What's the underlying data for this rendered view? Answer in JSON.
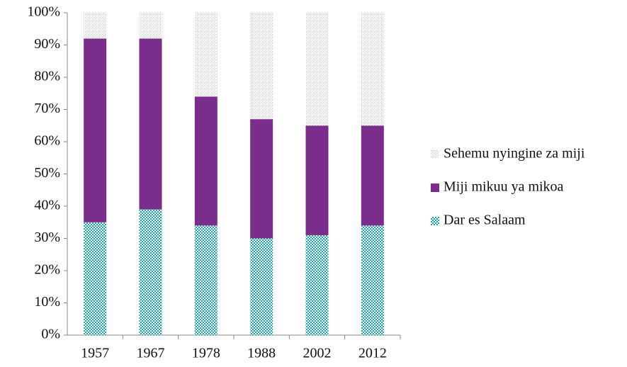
{
  "chart_data": {
    "type": "stacked_bar",
    "categories": [
      "1957",
      "1967",
      "1978",
      "1988",
      "2002",
      "2012"
    ],
    "series": [
      {
        "name": "Dar es Salaam",
        "color": "#1aa3a8",
        "pattern": "checker",
        "values": [
          35,
          39,
          34,
          30,
          31,
          34
        ]
      },
      {
        "name": "Miji mikuu ya mikoa",
        "color": "#7b2d8b",
        "pattern": "solid",
        "values": [
          57,
          53,
          40,
          37,
          34,
          31
        ]
      },
      {
        "name": "Sehemu nyingine za miji",
        "color": "#b8b8b8",
        "pattern": "dots",
        "values": [
          8,
          8,
          26,
          33,
          35,
          35
        ]
      }
    ],
    "ylim": [
      0,
      100
    ],
    "yticks": [
      {
        "value": 0,
        "label": "0%"
      },
      {
        "value": 10,
        "label": "10%"
      },
      {
        "value": 20,
        "label": "20%"
      },
      {
        "value": 30,
        "label": "30%"
      },
      {
        "value": 40,
        "label": "40%"
      },
      {
        "value": 50,
        "label": "50%"
      },
      {
        "value": 60,
        "label": "60%"
      },
      {
        "value": 70,
        "label": "70%"
      },
      {
        "value": 80,
        "label": "80%"
      },
      {
        "value": 90,
        "label": "90%"
      },
      {
        "value": 100,
        "label": "100%"
      }
    ],
    "grid": false,
    "legend": "right"
  }
}
